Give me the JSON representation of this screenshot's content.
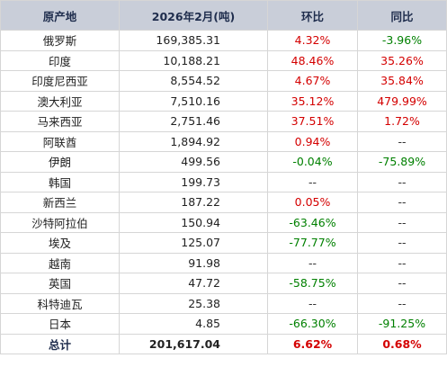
{
  "table": {
    "headers": [
      "原产地",
      "2026年2月(吨)",
      "环比",
      "同比"
    ],
    "rows": [
      {
        "name": "俄罗斯",
        "value": "169,385.31",
        "mom": "4.32%",
        "mom_color": "red",
        "yoy": "-3.96%",
        "yoy_color": "green"
      },
      {
        "name": "印度",
        "value": "10,188.21",
        "mom": "48.46%",
        "mom_color": "red",
        "yoy": "35.26%",
        "yoy_color": "red"
      },
      {
        "name": "印度尼西亚",
        "value": "8,554.52",
        "mom": "4.67%",
        "mom_color": "red",
        "yoy": "35.84%",
        "yoy_color": "red"
      },
      {
        "name": "澳大利亚",
        "value": "7,510.16",
        "mom": "35.12%",
        "mom_color": "red",
        "yoy": "479.99%",
        "yoy_color": "red"
      },
      {
        "name": "马来西亚",
        "value": "2,751.46",
        "mom": "37.51%",
        "mom_color": "red",
        "yoy": "1.72%",
        "yoy_color": "red"
      },
      {
        "name": "阿联酋",
        "value": "1,894.92",
        "mom": "0.94%",
        "mom_color": "red",
        "yoy": "--",
        "yoy_color": "neutral"
      },
      {
        "name": "伊朗",
        "value": "499.56",
        "mom": "-0.04%",
        "mom_color": "green",
        "yoy": "-75.89%",
        "yoy_color": "green"
      },
      {
        "name": "韩国",
        "value": "199.73",
        "mom": "--",
        "mom_color": "neutral",
        "yoy": "--",
        "yoy_color": "neutral"
      },
      {
        "name": "新西兰",
        "value": "187.22",
        "mom": "0.05%",
        "mom_color": "red",
        "yoy": "--",
        "yoy_color": "neutral"
      },
      {
        "name": "沙特阿拉伯",
        "value": "150.94",
        "mom": "-63.46%",
        "mom_color": "green",
        "yoy": "--",
        "yoy_color": "neutral"
      },
      {
        "name": "埃及",
        "value": "125.07",
        "mom": "-77.77%",
        "mom_color": "green",
        "yoy": "--",
        "yoy_color": "neutral"
      },
      {
        "name": "越南",
        "value": "91.98",
        "mom": "--",
        "mom_color": "neutral",
        "yoy": "--",
        "yoy_color": "neutral"
      },
      {
        "name": "英国",
        "value": "47.72",
        "mom": "-58.75%",
        "mom_color": "green",
        "yoy": "--",
        "yoy_color": "neutral"
      },
      {
        "name": "科特迪瓦",
        "value": "25.38",
        "mom": "--",
        "mom_color": "neutral",
        "yoy": "--",
        "yoy_color": "neutral"
      },
      {
        "name": "日本",
        "value": "4.85",
        "mom": "-66.30%",
        "mom_color": "green",
        "yoy": "-91.25%",
        "yoy_color": "green"
      }
    ],
    "total": {
      "name": "总计",
      "value": "201,617.04",
      "mom": "6.62%",
      "mom_color": "red",
      "yoy": "0.68%",
      "yoy_color": "red"
    }
  },
  "colors": {
    "header_bg": "#c9ced9",
    "header_text": "#1f2d4d",
    "positive": "#d40000",
    "negative": "#008000",
    "border": "#d6d6d6"
  }
}
